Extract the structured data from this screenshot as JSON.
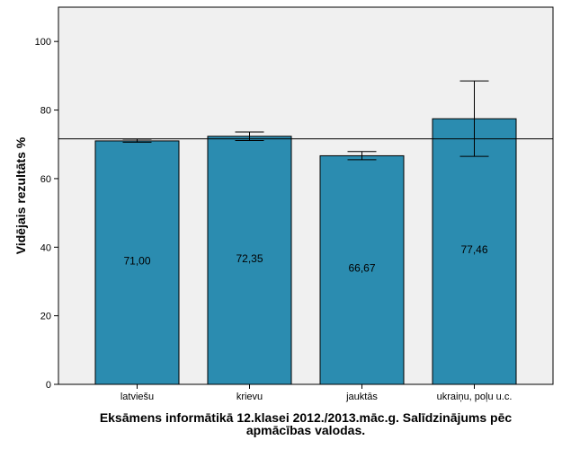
{
  "chart_data": {
    "type": "bar",
    "title_lines": [
      "Eksāmens informātikā 12.klasei 2012./2013.māc.g. Salīdzinājums pēc",
      "apmācības valodas."
    ],
    "xlabel": "",
    "ylabel": "Vidējais rezultāts %",
    "categories": [
      "latviešu",
      "krievu",
      "jauktās",
      "ukraiņu, poļu u.c."
    ],
    "values": [
      71.0,
      72.35,
      66.67,
      77.46
    ],
    "value_labels": [
      "71,00",
      "72,35",
      "66,67",
      "77,46"
    ],
    "error_low": [
      70.6,
      71.1,
      65.5,
      66.5
    ],
    "error_high": [
      71.5,
      73.6,
      67.9,
      88.5
    ],
    "reference_line": 71.6,
    "ylim": [
      0,
      110
    ],
    "yticks": [
      0,
      20,
      40,
      60,
      80,
      100
    ],
    "grid": false,
    "colors": {
      "bar": "#2b8cb0",
      "plot_bg": "#f0f0f0",
      "axis": "#000000"
    }
  }
}
